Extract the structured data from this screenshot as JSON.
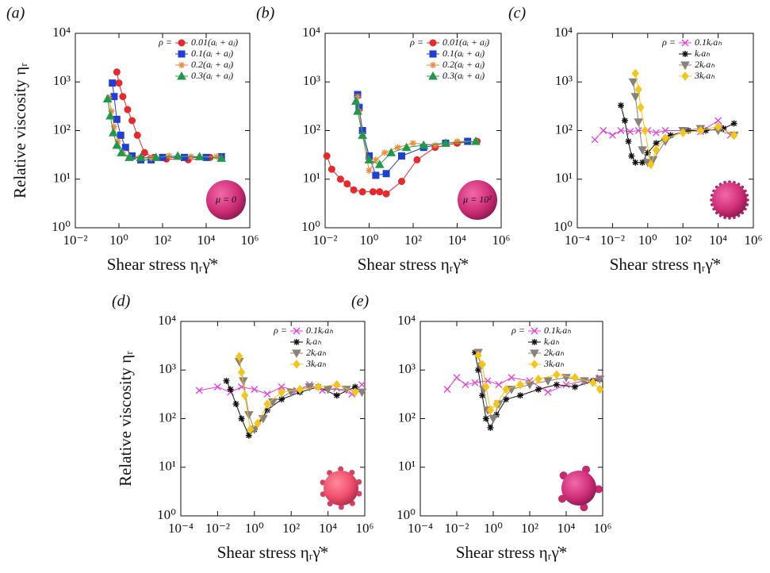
{
  "chart_data": [
    {
      "type": "line",
      "panel_label": "(a)",
      "xlabel": "Shear stress ηᵣγ̇*",
      "ylabel": "Relative viscosity ηᵣ",
      "log_scale": true,
      "legend_title": "ρ =",
      "legend": "upper right",
      "annotation": "μ = 0",
      "xlim": [
        0.01,
        1000000
      ],
      "ylim": [
        1,
        10000
      ],
      "xticks": [
        {
          "value": 0.01,
          "label": "10⁻²"
        },
        {
          "value": 1,
          "label": "10⁰"
        },
        {
          "value": 100,
          "label": "10²"
        },
        {
          "value": 10000,
          "label": "10⁴"
        },
        {
          "value": 1000000,
          "label": "10⁶"
        }
      ],
      "yticks": [
        {
          "value": 1,
          "label": "10⁰"
        },
        {
          "value": 10,
          "label": "10¹"
        },
        {
          "value": 100,
          "label": "10²"
        },
        {
          "value": 1000,
          "label": "10³"
        },
        {
          "value": 10000,
          "label": "10⁴"
        }
      ],
      "series": [
        {
          "name": "0.01(aᵢ + aⱼ)",
          "color": "#e8282b",
          "marker": "circle",
          "x": [
            0.8,
            1,
            1.5,
            2.5,
            4,
            7,
            15,
            40,
            150,
            1500,
            15000
          ],
          "values": [
            1600,
            950,
            500,
            270,
            160,
            80,
            35,
            28,
            26,
            25,
            28
          ]
        },
        {
          "name": "0.1(aᵢ + aⱼ)",
          "color": "#1f3fd6",
          "marker": "square",
          "x": [
            0.5,
            0.6,
            0.8,
            1.2,
            2,
            4,
            10,
            30,
            100,
            1000,
            10000,
            50000
          ],
          "values": [
            950,
            500,
            170,
            80,
            45,
            30,
            25,
            25,
            28,
            28,
            28,
            29
          ]
        },
        {
          "name": "0.2(aᵢ + aⱼ)",
          "color": "#f08a3c",
          "marker": "star",
          "x": [
            0.35,
            0.45,
            0.6,
            0.9,
            1.5,
            3,
            8,
            30,
            200,
            2000,
            30000
          ],
          "values": [
            480,
            250,
            120,
            60,
            35,
            28,
            27,
            27,
            30,
            29,
            29
          ]
        },
        {
          "name": "0.3(aᵢ + aⱼ)",
          "color": "#1f9a4a",
          "marker": "triangle",
          "x": [
            0.3,
            0.4,
            0.55,
            0.8,
            1.3,
            3,
            10,
            50,
            500,
            5000,
            50000
          ],
          "values": [
            450,
            200,
            90,
            50,
            35,
            28,
            28,
            28,
            30,
            29,
            27
          ]
        }
      ]
    },
    {
      "type": "line",
      "panel_label": "(b)",
      "xlabel": "Shear stress ηᵣγ̇*",
      "log_scale": true,
      "legend_title": "ρ =",
      "legend": "upper right",
      "annotation": "μ = 10²",
      "xlim": [
        0.01,
        1000000
      ],
      "ylim": [
        1,
        10000
      ],
      "xticks": [
        {
          "value": 0.01,
          "label": "10⁻²"
        },
        {
          "value": 1,
          "label": "10⁰"
        },
        {
          "value": 100,
          "label": "10²"
        },
        {
          "value": 10000,
          "label": "10⁴"
        },
        {
          "value": 1000000,
          "label": "10⁶"
        }
      ],
      "yticks": [
        {
          "value": 1,
          "label": "10⁰"
        },
        {
          "value": 10,
          "label": "10¹"
        },
        {
          "value": 100,
          "label": "10²"
        },
        {
          "value": 1000,
          "label": "10³"
        },
        {
          "value": 10000,
          "label": "10⁴"
        }
      ],
      "series": [
        {
          "name": "0.01(aᵢ + aⱼ)",
          "color": "#e8282b",
          "marker": "circle",
          "x": [
            0.012,
            0.02,
            0.05,
            0.1,
            0.2,
            0.5,
            1.5,
            3,
            6,
            30,
            150,
            1000,
            10000,
            80000
          ],
          "values": [
            30,
            16,
            10,
            8,
            6,
            5.5,
            5.5,
            5.5,
            5,
            9,
            25,
            45,
            55,
            60
          ]
        },
        {
          "name": "0.1(aᵢ + aⱼ)",
          "color": "#1f3fd6",
          "marker": "square",
          "x": [
            0.3,
            0.35,
            0.5,
            1,
            2,
            6,
            30,
            300,
            3000,
            30000
          ],
          "values": [
            550,
            300,
            100,
            30,
            12,
            13,
            30,
            45,
            55,
            60
          ]
        },
        {
          "name": "0.2(aᵢ + aⱼ)",
          "color": "#f08a3c",
          "marker": "star",
          "x": [
            0.3,
            0.35,
            0.5,
            1,
            2,
            5,
            20,
            100,
            1000,
            10000,
            70000
          ],
          "values": [
            500,
            250,
            80,
            15,
            25,
            35,
            45,
            55,
            50,
            60,
            60
          ]
        },
        {
          "name": "0.3(aᵢ + aⱼ)",
          "color": "#1f9a4a",
          "marker": "triangle",
          "x": [
            0.25,
            0.3,
            0.5,
            1,
            3,
            10,
            50,
            300,
            3000,
            70000
          ],
          "values": [
            400,
            250,
            80,
            25,
            20,
            35,
            45,
            50,
            55,
            60
          ]
        }
      ]
    },
    {
      "type": "line",
      "panel_label": "(c)",
      "xlabel": "Shear stress ηᵣγ̇*",
      "log_scale": true,
      "legend_title": "ρ =",
      "legend": "upper right",
      "xlim": [
        0.0001,
        1000000
      ],
      "ylim": [
        1,
        10000
      ],
      "xticks": [
        {
          "value": 0.0001,
          "label": "10⁻⁴"
        },
        {
          "value": 0.01,
          "label": "10⁻²"
        },
        {
          "value": 1,
          "label": "10⁰"
        },
        {
          "value": 100,
          "label": "10²"
        },
        {
          "value": 10000,
          "label": "10⁴"
        },
        {
          "value": 1000000,
          "label": "10⁶"
        }
      ],
      "yticks": [
        {
          "value": 1,
          "label": "10⁰"
        },
        {
          "value": 10,
          "label": "10¹"
        },
        {
          "value": 100,
          "label": "10²"
        },
        {
          "value": 1000,
          "label": "10³"
        },
        {
          "value": 10000,
          "label": "10⁴"
        }
      ],
      "series": [
        {
          "name": "0.1kᵣaₕ",
          "color": "#e83ee0",
          "marker": "x",
          "x": [
            0.001,
            0.003,
            0.01,
            0.03,
            0.1,
            0.3,
            1,
            3,
            10,
            100,
            1000,
            10000,
            50000
          ],
          "values": [
            65,
            100,
            80,
            100,
            95,
            100,
            100,
            90,
            100,
            100,
            95,
            160,
            80
          ]
        },
        {
          "name": "kᵣaₕ",
          "color": "#111111",
          "marker": "star",
          "x": [
            0.03,
            0.05,
            0.08,
            0.12,
            0.2,
            0.5,
            1,
            3,
            20,
            200,
            2000,
            20000,
            80000
          ],
          "values": [
            330,
            160,
            60,
            30,
            22,
            22,
            35,
            55,
            80,
            100,
            100,
            110,
            140
          ]
        },
        {
          "name": "2kᵣaₕ",
          "color": "#8a8178",
          "marker": "triangle-down",
          "x": [
            0.15,
            0.2,
            0.3,
            0.5,
            1,
            2,
            10,
            100,
            1000,
            10000,
            80000
          ],
          "values": [
            1000,
            500,
            150,
            40,
            22,
            25,
            60,
            100,
            110,
            100,
            80
          ]
        },
        {
          "name": "3kᵣaₕ",
          "color": "#f5c518",
          "marker": "diamond",
          "x": [
            0.2,
            0.3,
            0.4,
            0.7,
            1.5,
            3,
            10,
            100,
            1000,
            10000,
            80000
          ],
          "values": [
            1500,
            700,
            300,
            100,
            20,
            40,
            70,
            90,
            100,
            120,
            80
          ]
        }
      ]
    },
    {
      "type": "line",
      "panel_label": "(d)",
      "xlabel": "Shear stress ηᵣγ̇*",
      "ylabel": "Relative viscosity ηᵣ",
      "log_scale": true,
      "legend_title": "ρ =",
      "legend": "upper right",
      "xlim": [
        0.0001,
        1000000
      ],
      "ylim": [
        1,
        10000
      ],
      "xticks": [
        {
          "value": 0.0001,
          "label": "10⁻⁴"
        },
        {
          "value": 0.01,
          "label": "10⁻²"
        },
        {
          "value": 1,
          "label": "10⁰"
        },
        {
          "value": 100,
          "label": "10²"
        },
        {
          "value": 10000,
          "label": "10⁴"
        },
        {
          "value": 1000000,
          "label": "10⁶"
        }
      ],
      "yticks": [
        {
          "value": 1,
          "label": "10⁰"
        },
        {
          "value": 10,
          "label": "10¹"
        },
        {
          "value": 100,
          "label": "10²"
        },
        {
          "value": 1000,
          "label": "10³"
        },
        {
          "value": 10000,
          "label": "10⁴"
        }
      ],
      "series": [
        {
          "name": "0.1kᵣaₕ",
          "color": "#e83ee0",
          "marker": "x",
          "x": [
            0.001,
            0.01,
            0.05,
            0.2,
            1,
            5,
            30,
            200,
            1000,
            5000,
            30000,
            200000,
            700000
          ],
          "values": [
            380,
            450,
            350,
            450,
            400,
            320,
            450,
            380,
            500,
            380,
            420,
            320,
            500
          ]
        },
        {
          "name": "kᵣaₕ",
          "color": "#111111",
          "marker": "star",
          "x": [
            0.03,
            0.05,
            0.1,
            0.2,
            0.5,
            1,
            5,
            30,
            300,
            3000,
            30000,
            300000
          ],
          "values": [
            600,
            400,
            200,
            100,
            45,
            60,
            150,
            250,
            350,
            450,
            300,
            450
          ]
        },
        {
          "name": "2kᵣaₕ",
          "color": "#8a8178",
          "marker": "triangle-down",
          "x": [
            0.15,
            0.25,
            0.5,
            1,
            3,
            10,
            100,
            1000,
            10000,
            100000,
            700000
          ],
          "values": [
            1500,
            600,
            120,
            60,
            100,
            220,
            350,
            450,
            400,
            400,
            350
          ]
        },
        {
          "name": "3kᵣaₕ",
          "color": "#f5c518",
          "marker": "diamond",
          "x": [
            0.15,
            0.2,
            0.3,
            0.6,
            1.5,
            5,
            30,
            300,
            3000,
            30000,
            300000
          ],
          "values": [
            1900,
            900,
            300,
            60,
            80,
            200,
            350,
            400,
            450,
            500,
            350
          ]
        }
      ]
    },
    {
      "type": "line",
      "panel_label": "(e)",
      "xlabel": "Shear stress ηᵣγ̇*",
      "log_scale": true,
      "legend_title": "ρ =",
      "legend": "upper right",
      "xlim": [
        0.0001,
        1000000
      ],
      "ylim": [
        1,
        10000
      ],
      "xticks": [
        {
          "value": 0.0001,
          "label": "10⁻⁴"
        },
        {
          "value": 0.01,
          "label": "10⁻²"
        },
        {
          "value": 1,
          "label": "10⁰"
        },
        {
          "value": 100,
          "label": "10²"
        },
        {
          "value": 10000,
          "label": "10⁴"
        },
        {
          "value": 1000000,
          "label": "10⁶"
        }
      ],
      "yticks": [
        {
          "value": 1,
          "label": "10⁰"
        },
        {
          "value": 10,
          "label": "10¹"
        },
        {
          "value": 100,
          "label": "10²"
        },
        {
          "value": 1000,
          "label": "10³"
        },
        {
          "value": 10000,
          "label": "10⁴"
        }
      ],
      "series": [
        {
          "name": "0.1kᵣaₕ",
          "color": "#e83ee0",
          "marker": "x",
          "x": [
            0.003,
            0.01,
            0.03,
            0.1,
            0.5,
            2,
            10,
            100,
            1000,
            10000,
            100000,
            700000
          ],
          "values": [
            400,
            700,
            500,
            550,
            600,
            500,
            700,
            600,
            350,
            500,
            600,
            700
          ]
        },
        {
          "name": "kᵣaₕ",
          "color": "#111111",
          "marker": "star",
          "x": [
            0.1,
            0.15,
            0.25,
            0.4,
            0.7,
            1.5,
            5,
            30,
            300,
            3000,
            30000,
            300000,
            700000
          ],
          "values": [
            2300,
            1000,
            300,
            100,
            65,
            120,
            250,
            300,
            400,
            500,
            450,
            600,
            650
          ]
        },
        {
          "name": "2kᵣaₕ",
          "color": "#8a8178",
          "marker": "triangle-down",
          "x": [
            0.15,
            0.2,
            0.3,
            0.5,
            1,
            2,
            10,
            100,
            1000,
            10000,
            100000,
            700000
          ],
          "values": [
            2300,
            1200,
            400,
            150,
            100,
            200,
            400,
            500,
            600,
            700,
            600,
            650
          ]
        },
        {
          "name": "3kᵣaₕ",
          "color": "#f5c518",
          "marker": "diamond",
          "x": [
            0.15,
            0.25,
            0.4,
            0.7,
            1.5,
            5,
            30,
            300,
            3000,
            30000,
            300000,
            700000
          ],
          "values": [
            2000,
            1300,
            450,
            150,
            200,
            400,
            500,
            650,
            800,
            700,
            550,
            400
          ]
        }
      ]
    }
  ]
}
